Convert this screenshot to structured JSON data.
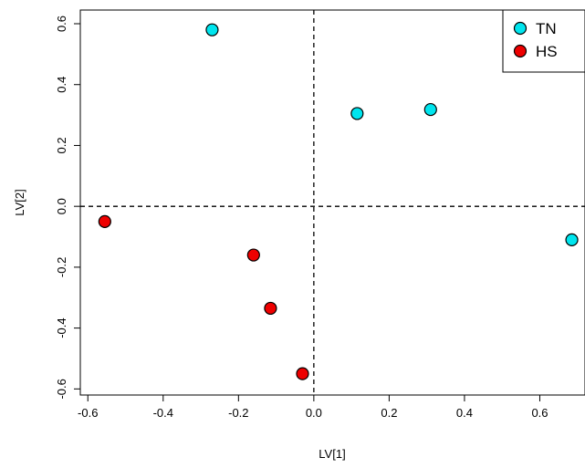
{
  "chart_data": {
    "type": "scatter",
    "xlabel": "LV[1]",
    "ylabel": "LV[2]",
    "xlim": [
      -0.62,
      0.72
    ],
    "ylim": [
      -0.62,
      0.645
    ],
    "x_ticks": [
      "-0.6",
      "-0.4",
      "-0.2",
      "0.0",
      "0.2",
      "0.4",
      "0.6"
    ],
    "y_ticks": [
      "-0.6",
      "-0.4",
      "-0.2",
      "0.0",
      "0.2",
      "0.4",
      "0.6"
    ],
    "reference_lines": {
      "x": 0,
      "y": 0
    },
    "legend_position": "top-right",
    "series": [
      {
        "name": "TN",
        "color": "#00E5EE",
        "points": [
          {
            "x": -0.27,
            "y": 0.58
          },
          {
            "x": 0.115,
            "y": 0.305
          },
          {
            "x": 0.31,
            "y": 0.318
          },
          {
            "x": 0.685,
            "y": -0.11
          }
        ]
      },
      {
        "name": "HS",
        "color": "#EE0000",
        "points": [
          {
            "x": -0.555,
            "y": -0.05
          },
          {
            "x": -0.16,
            "y": -0.16
          },
          {
            "x": -0.115,
            "y": -0.335
          },
          {
            "x": -0.03,
            "y": -0.55
          }
        ]
      }
    ]
  }
}
